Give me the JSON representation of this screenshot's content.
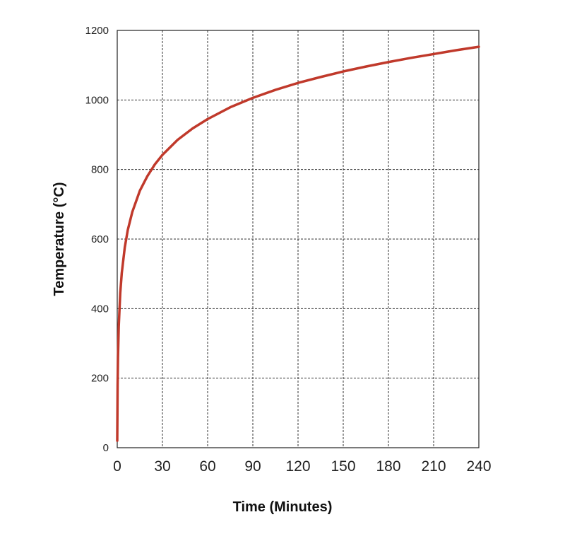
{
  "chart_data": {
    "type": "line",
    "title": "",
    "xlabel": "Time (Minutes)",
    "ylabel": "Temperature (°C)",
    "xlim": [
      0,
      240
    ],
    "ylim": [
      0,
      1200
    ],
    "x_ticks": [
      0,
      30,
      60,
      90,
      120,
      150,
      180,
      210,
      240
    ],
    "y_ticks": [
      0,
      200,
      400,
      600,
      800,
      1000,
      1200
    ],
    "grid": true,
    "legend": "none",
    "line_color": "#c0392b",
    "series": [
      {
        "x": [
          0,
          0.25,
          0.5,
          1,
          2,
          3,
          5,
          7,
          10,
          15,
          20,
          25,
          30,
          40,
          50,
          60,
          75,
          90,
          105,
          120,
          135,
          150,
          165,
          180,
          195,
          210,
          225,
          240
        ],
        "y": [
          20,
          180,
          260,
          349,
          445,
          502,
          576,
          626,
          678,
          739,
          781,
          815,
          842,
          885,
          918,
          945,
          979,
          1006,
          1029,
          1049,
          1066,
          1082,
          1096,
          1109,
          1121,
          1132,
          1143,
          1153
        ]
      }
    ]
  }
}
